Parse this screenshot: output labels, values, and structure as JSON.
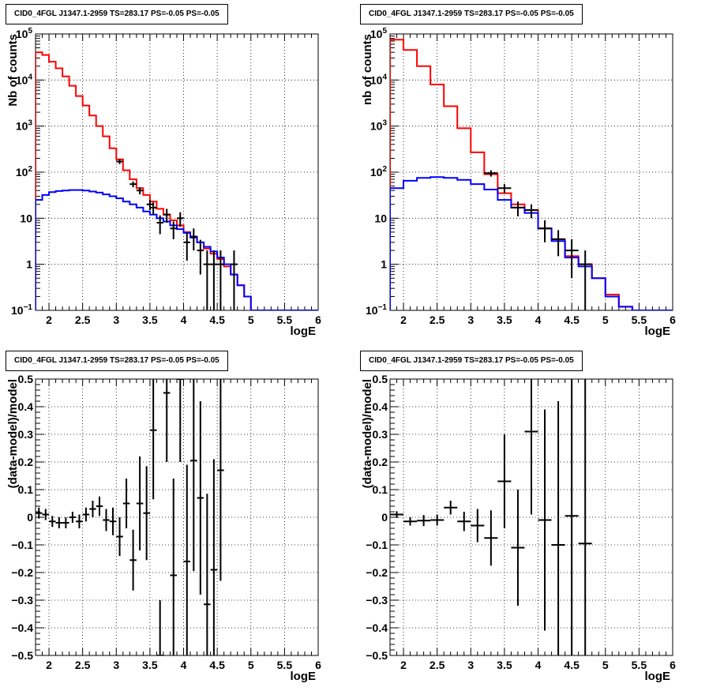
{
  "chart_data": [
    {
      "type": "histogram",
      "title": "CID0_4FGL J1347.1-2959 TS=283.17 PS=-0.05 PS=-0.05",
      "xlabel": "logE",
      "ylabel": "Nb of counts",
      "xlim": [
        1.8,
        6.0
      ],
      "ylim": [
        0.1,
        100000
      ],
      "log_y": true,
      "grid": true,
      "xticks": [
        "2",
        "2.5",
        "3",
        "3.5",
        "4",
        "4.5",
        "5",
        "5.5",
        "6"
      ],
      "yticks": [
        "10^-1",
        "1",
        "10",
        "10^2",
        "10^3",
        "10^4",
        "10^5"
      ],
      "bin_edges": [
        1.8,
        1.9,
        2.0,
        2.1,
        2.2,
        2.3,
        2.4,
        2.5,
        2.6,
        2.7,
        2.8,
        2.9,
        3.0,
        3.1,
        3.2,
        3.3,
        3.4,
        3.5,
        3.6,
        3.7,
        3.8,
        3.9,
        4.0,
        4.1,
        4.2,
        4.3,
        4.4,
        4.5,
        4.6,
        4.7,
        4.8,
        4.9,
        5.0,
        5.1,
        5.2,
        5.3,
        5.4,
        5.5,
        5.6,
        5.7,
        5.8,
        5.9,
        6.0
      ],
      "series": [
        {
          "color": "#ff0000",
          "values": [
            40000,
            35000,
            25000,
            18000,
            12000,
            7500,
            4500,
            2800,
            1700,
            1000,
            600,
            330,
            190,
            110,
            70,
            45,
            32,
            23,
            16,
            12,
            9,
            7,
            5,
            4,
            3,
            2.2,
            1.7,
            1.3,
            0.9,
            0.6,
            0.35,
            0.2,
            0.1,
            0.1,
            0.1,
            0.1,
            0.1,
            0.1,
            0.1,
            0.1,
            0.1,
            0.1
          ]
        },
        {
          "color": "#0000ff",
          "values": [
            25,
            32,
            37,
            39,
            40,
            41,
            41,
            40,
            38,
            36,
            33,
            30,
            27,
            23,
            20,
            17,
            14,
            12,
            10,
            8.5,
            7,
            5.8,
            4.8,
            3.8,
            3,
            2.4,
            1.9,
            1.4,
            1.0,
            0.6,
            0.35,
            0.2,
            0.1,
            0.1,
            0.1,
            0.1,
            0.1,
            0.1,
            0.1,
            0.1,
            0.1,
            0.1
          ]
        }
      ],
      "data_points": [
        {
          "x": 3.05,
          "y": 170,
          "yerr_lo": 20,
          "yerr_hi": 20
        },
        {
          "x": 3.25,
          "y": 55,
          "yerr_lo": 8,
          "yerr_hi": 8
        },
        {
          "x": 3.35,
          "y": 40,
          "yerr_lo": 7,
          "yerr_hi": 7
        },
        {
          "x": 3.5,
          "y": 20,
          "yerr_lo": 5,
          "yerr_hi": 5
        },
        {
          "x": 3.55,
          "y": 17,
          "yerr_lo": 5,
          "yerr_hi": 5
        },
        {
          "x": 3.65,
          "y": 8,
          "yerr_lo": 3.5,
          "yerr_hi": 3.5
        },
        {
          "x": 3.75,
          "y": 12,
          "yerr_lo": 4,
          "yerr_hi": 4
        },
        {
          "x": 3.85,
          "y": 6,
          "yerr_lo": 2.5,
          "yerr_hi": 2.5
        },
        {
          "x": 3.95,
          "y": 10,
          "yerr_lo": 3.5,
          "yerr_hi": 3.5
        },
        {
          "x": 4.05,
          "y": 3,
          "yerr_lo": 1.8,
          "yerr_hi": 1.8
        },
        {
          "x": 4.15,
          "y": 4,
          "yerr_lo": 2,
          "yerr_hi": 2
        },
        {
          "x": 4.25,
          "y": 2,
          "yerr_lo": 1.4,
          "yerr_hi": 1.4
        },
        {
          "x": 4.35,
          "y": 1,
          "yerr_lo": 1,
          "yerr_hi": 1
        },
        {
          "x": 4.45,
          "y": 1,
          "yerr_lo": 1,
          "yerr_hi": 1
        },
        {
          "x": 4.55,
          "y": 1,
          "yerr_lo": 1,
          "yerr_hi": 1
        },
        {
          "x": 4.75,
          "y": 1,
          "yerr_lo": 1,
          "yerr_hi": 1
        }
      ]
    },
    {
      "type": "histogram",
      "title": "CID0_4FGL J1347.1-2959 TS=283.17 PS=-0.05 PS=-0.05",
      "xlabel": "logE",
      "ylabel": "nb of counts",
      "xlim": [
        1.8,
        6.0
      ],
      "ylim": [
        0.1,
        100000
      ],
      "log_y": true,
      "grid": true,
      "xticks": [
        "2",
        "2.5",
        "3",
        "3.5",
        "4",
        "4.5",
        "5",
        "5.5",
        "6"
      ],
      "yticks": [
        "10^-1",
        "1",
        "10",
        "10^2",
        "10^3",
        "10^4",
        "10^5"
      ],
      "bin_edges": [
        1.8,
        2.0,
        2.2,
        2.4,
        2.6,
        2.8,
        3.0,
        3.2,
        3.4,
        3.6,
        3.8,
        4.0,
        4.2,
        4.4,
        4.6,
        4.8,
        5.0,
        5.2,
        5.4,
        5.6,
        5.8,
        6.0
      ],
      "series": [
        {
          "color": "#ff0000",
          "values": [
            75000,
            45000,
            20000,
            8000,
            2700,
            900,
            270,
            90,
            35,
            20,
            15,
            6,
            3.5,
            1.5,
            1,
            0.5,
            0.22,
            0.12,
            0.1,
            0.1,
            0.1
          ]
        },
        {
          "color": "#0000ff",
          "values": [
            45,
            65,
            75,
            78,
            75,
            68,
            55,
            42,
            25,
            17,
            13,
            6,
            3.2,
            1.4,
            0.9,
            0.5,
            0.2,
            0.12,
            0.1,
            0.1,
            0.1
          ]
        }
      ],
      "data_points": [
        {
          "x": 3.3,
          "y": 95,
          "yerr_lo": 15,
          "yerr_hi": 15
        },
        {
          "x": 3.5,
          "y": 45,
          "yerr_lo": 10,
          "yerr_hi": 10
        },
        {
          "x": 3.7,
          "y": 17,
          "yerr_lo": 6,
          "yerr_hi": 6
        },
        {
          "x": 3.9,
          "y": 15,
          "yerr_lo": 5,
          "yerr_hi": 5
        },
        {
          "x": 4.1,
          "y": 6,
          "yerr_lo": 3,
          "yerr_hi": 3
        },
        {
          "x": 4.3,
          "y": 3.5,
          "yerr_lo": 2,
          "yerr_hi": 2
        },
        {
          "x": 4.5,
          "y": 2,
          "yerr_lo": 1.5,
          "yerr_hi": 1.5
        },
        {
          "x": 4.7,
          "y": 1,
          "yerr_lo": 1,
          "yerr_hi": 1
        }
      ]
    },
    {
      "type": "scatter",
      "title": "CID0_4FGL J1347.1-2959 TS=283.17 PS=-0.05 PS=-0.05",
      "xlabel": "logE",
      "ylabel": "(data-model)/model",
      "xlim": [
        1.8,
        6.0
      ],
      "ylim": [
        -0.5,
        0.5
      ],
      "grid": true,
      "xticks": [
        "2",
        "2.5",
        "3",
        "3.5",
        "4",
        "4.5",
        "5",
        "5.5",
        "6"
      ],
      "yticks": [
        "−0.5",
        "−0.4",
        "−0.3",
        "−0.2",
        "−0.1",
        "0",
        "0.1",
        "0.2",
        "0.3",
        "0.4",
        "0.5"
      ],
      "points": [
        {
          "x": 1.85,
          "y": 0.015,
          "err": 0.02
        },
        {
          "x": 1.95,
          "y": 0.01,
          "err": 0.02
        },
        {
          "x": 2.05,
          "y": -0.015,
          "err": 0.02
        },
        {
          "x": 2.15,
          "y": -0.02,
          "err": 0.02
        },
        {
          "x": 2.25,
          "y": -0.02,
          "err": 0.02
        },
        {
          "x": 2.35,
          "y": 0.0,
          "err": 0.02
        },
        {
          "x": 2.45,
          "y": -0.015,
          "err": 0.025
        },
        {
          "x": 2.55,
          "y": 0.01,
          "err": 0.025
        },
        {
          "x": 2.65,
          "y": 0.03,
          "err": 0.03
        },
        {
          "x": 2.75,
          "y": 0.04,
          "err": 0.035
        },
        {
          "x": 2.85,
          "y": -0.01,
          "err": 0.04
        },
        {
          "x": 2.95,
          "y": -0.015,
          "err": 0.05
        },
        {
          "x": 3.05,
          "y": -0.07,
          "err": 0.07
        },
        {
          "x": 3.15,
          "y": 0.05,
          "err": 0.09
        },
        {
          "x": 3.25,
          "y": -0.155,
          "err": 0.11
        },
        {
          "x": 3.35,
          "y": 0.05,
          "err": 0.17
        },
        {
          "x": 3.45,
          "y": 0.015,
          "err": 0.17
        },
        {
          "x": 3.55,
          "y": 0.315,
          "err": 0.25
        },
        {
          "x": 3.65,
          "y": -0.5,
          "err": 0.2
        },
        {
          "x": 3.75,
          "y": 0.45,
          "err": 0.25
        },
        {
          "x": 3.85,
          "y": -0.21,
          "err": 0.35
        },
        {
          "x": 3.95,
          "y": 0.5,
          "err": 0.3
        },
        {
          "x": 4.05,
          "y": -0.16,
          "err": 0.35
        },
        {
          "x": 4.15,
          "y": 0.205,
          "err": 0.4
        },
        {
          "x": 4.25,
          "y": 0.07,
          "err": 0.35
        },
        {
          "x": 4.35,
          "y": -0.315,
          "err": 0.4
        },
        {
          "x": 4.45,
          "y": -0.19,
          "err": 0.4
        },
        {
          "x": 4.55,
          "y": 0.17,
          "err": 0.4
        }
      ]
    },
    {
      "type": "scatter",
      "title": "CID0_4FGL J1347.1-2959 TS=283.17 PS=-0.05 PS=-0.05",
      "xlabel": "logE",
      "ylabel": "(data-model)/model",
      "xlim": [
        1.8,
        6.0
      ],
      "ylim": [
        -0.5,
        0.5
      ],
      "grid": true,
      "xticks": [
        "2",
        "2.5",
        "3",
        "3.5",
        "4",
        "4.5",
        "5",
        "5.5",
        "6"
      ],
      "yticks": [
        "−0.5",
        "−0.4",
        "−0.3",
        "−0.2",
        "−0.1",
        "0",
        "0.1",
        "0.2",
        "0.3",
        "0.4",
        "0.5"
      ],
      "points": [
        {
          "x": 1.9,
          "y": 0.01,
          "err": 0.012
        },
        {
          "x": 2.1,
          "y": -0.015,
          "err": 0.015
        },
        {
          "x": 2.3,
          "y": -0.012,
          "err": 0.02
        },
        {
          "x": 2.5,
          "y": -0.01,
          "err": 0.02
        },
        {
          "x": 2.7,
          "y": 0.035,
          "err": 0.025
        },
        {
          "x": 2.9,
          "y": -0.015,
          "err": 0.035
        },
        {
          "x": 3.1,
          "y": -0.03,
          "err": 0.06
        },
        {
          "x": 3.3,
          "y": -0.075,
          "err": 0.1
        },
        {
          "x": 3.5,
          "y": 0.13,
          "err": 0.17
        },
        {
          "x": 3.7,
          "y": -0.11,
          "err": 0.21
        },
        {
          "x": 3.9,
          "y": 0.31,
          "err": 0.3
        },
        {
          "x": 4.1,
          "y": -0.01,
          "err": 0.4
        },
        {
          "x": 4.3,
          "y": -0.1,
          "err": 0.52
        },
        {
          "x": 4.5,
          "y": 0.005,
          "err": 0.55
        },
        {
          "x": 4.7,
          "y": -0.095,
          "err": 0.6
        }
      ]
    }
  ]
}
